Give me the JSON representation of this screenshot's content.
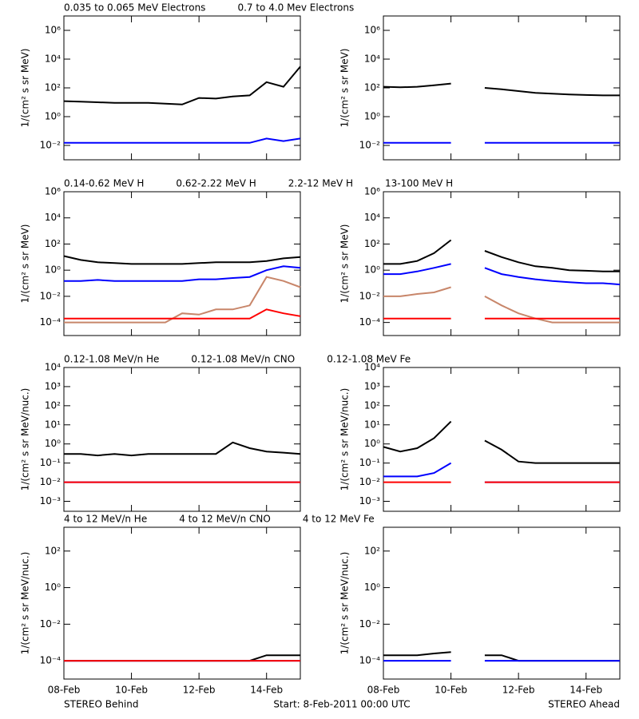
{
  "chart_data": [
    {
      "type": "line",
      "log_y": true,
      "ylabel": "1/(cm² s sr MeV)",
      "xlim": [
        0,
        7
      ],
      "xticks": [
        0,
        2,
        4,
        6
      ],
      "ylim": [
        0.001,
        10000000
      ],
      "yticks": [
        {
          "value": 0.01,
          "label": "10⁻²"
        },
        {
          "value": 1,
          "label": "10⁰"
        },
        {
          "value": 100,
          "label": "10²"
        },
        {
          "value": 10000,
          "label": "10⁴"
        },
        {
          "value": 1000000,
          "label": "10⁶"
        }
      ],
      "x": [
        0,
        0.5,
        1,
        1.5,
        2,
        2.5,
        3,
        3.5,
        4,
        4.5,
        5,
        5.5,
        6,
        6.5,
        7
      ],
      "series": [
        {
          "name": "0.035 to 0.065 MeV Electrons",
          "color": "#000000",
          "values": [
            12,
            11,
            10,
            9,
            9,
            9,
            8,
            7,
            20,
            18,
            25,
            30,
            250,
            120,
            3000
          ]
        },
        {
          "name": "0.7 to 4.0 Mev Electrons",
          "color": "#0000ff",
          "values": [
            0.015,
            0.015,
            0.015,
            0.015,
            0.015,
            0.015,
            0.015,
            0.015,
            0.015,
            0.015,
            0.015,
            0.015,
            0.03,
            0.02,
            0.03
          ]
        }
      ]
    },
    {
      "type": "line",
      "log_y": true,
      "ylabel": "1/(cm² s sr MeV)",
      "xlim": [
        0,
        7
      ],
      "xticks": [
        0,
        2,
        4,
        6
      ],
      "ylim": [
        0.001,
        10000000
      ],
      "yticks": [
        {
          "value": 0.01,
          "label": "10⁻²"
        },
        {
          "value": 1,
          "label": "10⁰"
        },
        {
          "value": 100,
          "label": "10²"
        },
        {
          "value": 10000,
          "label": "10⁴"
        },
        {
          "value": 1000000,
          "label": "10⁶"
        }
      ],
      "x": [
        0,
        0.5,
        1,
        1.5,
        2,
        2.5,
        3,
        3.5,
        4,
        4.5,
        5,
        5.5,
        6,
        6.5,
        7
      ],
      "series": [
        {
          "color": "#000000",
          "values": [
            120,
            110,
            120,
            150,
            200,
            null,
            100,
            80,
            60,
            45,
            40,
            35,
            32,
            30,
            30
          ]
        },
        {
          "color": "#0000ff",
          "values": [
            0.015,
            0.015,
            0.015,
            0.015,
            0.015,
            null,
            0.015,
            0.015,
            0.015,
            0.015,
            0.015,
            0.015,
            0.015,
            0.015,
            0.015
          ]
        }
      ]
    },
    {
      "type": "line",
      "log_y": true,
      "ylabel": "1/(cm² s sr MeV)",
      "xlim": [
        0,
        7
      ],
      "xticks": [
        0,
        2,
        4,
        6
      ],
      "ylim": [
        1e-05,
        1000000
      ],
      "yticks": [
        {
          "value": 0.0001,
          "label": "10⁻⁴"
        },
        {
          "value": 0.01,
          "label": "10⁻²"
        },
        {
          "value": 1,
          "label": "10⁰"
        },
        {
          "value": 100,
          "label": "10²"
        },
        {
          "value": 10000,
          "label": "10⁴"
        },
        {
          "value": 1000000,
          "label": "10⁶"
        }
      ],
      "x": [
        0,
        0.5,
        1,
        1.5,
        2,
        2.5,
        3,
        3.5,
        4,
        4.5,
        5,
        5.5,
        6,
        6.5,
        7
      ],
      "series": [
        {
          "name": "0.14-0.62 MeV H",
          "color": "#000000",
          "values": [
            12,
            6,
            4,
            3.5,
            3,
            3,
            3,
            3,
            3.5,
            4,
            4,
            4,
            5,
            8,
            10
          ]
        },
        {
          "name": "0.62-2.22 MeV H",
          "color": "#0000ff",
          "values": [
            0.15,
            0.15,
            0.18,
            0.15,
            0.15,
            0.15,
            0.15,
            0.15,
            0.2,
            0.2,
            0.25,
            0.3,
            1,
            2,
            1.5
          ]
        },
        {
          "name": "2.2-12 MeV H",
          "color": "#c8866a",
          "values": [
            0.0001,
            0.0001,
            0.0001,
            0.0001,
            0.0001,
            0.0001,
            0.0001,
            0.0005,
            0.0004,
            0.001,
            0.001,
            0.002,
            0.3,
            0.15,
            0.05
          ]
        },
        {
          "name": "13-100 MeV H",
          "color": "#ff0000",
          "values": [
            0.0002,
            0.0002,
            0.0002,
            0.0002,
            0.0002,
            0.0002,
            0.0002,
            0.0002,
            0.0002,
            0.0002,
            0.0002,
            0.0002,
            0.001,
            0.0005,
            0.0003
          ]
        }
      ]
    },
    {
      "type": "line",
      "log_y": true,
      "ylabel": "1/(cm² s sr MeV)",
      "xlim": [
        0,
        7
      ],
      "xticks": [
        0,
        2,
        4,
        6
      ],
      "ylim": [
        1e-05,
        1000000
      ],
      "yticks": [
        {
          "value": 0.0001,
          "label": "10⁻⁴"
        },
        {
          "value": 0.01,
          "label": "10⁻²"
        },
        {
          "value": 1,
          "label": "10⁰"
        },
        {
          "value": 100,
          "label": "10²"
        },
        {
          "value": 10000,
          "label": "10⁴"
        },
        {
          "value": 1000000,
          "label": "10⁶"
        }
      ],
      "x": [
        0,
        0.5,
        1,
        1.5,
        2,
        2.5,
        3,
        3.5,
        4,
        4.5,
        5,
        5.5,
        6,
        6.5,
        7
      ],
      "series": [
        {
          "color": "#000000",
          "values": [
            3,
            3,
            5,
            20,
            200,
            null,
            30,
            10,
            4,
            2,
            1.5,
            1,
            0.9,
            0.8,
            0.8
          ]
        },
        {
          "color": "#0000ff",
          "values": [
            0.5,
            0.5,
            0.8,
            1.5,
            3,
            null,
            1.5,
            0.5,
            0.3,
            0.2,
            0.15,
            0.12,
            0.1,
            0.1,
            0.08
          ]
        },
        {
          "color": "#c8866a",
          "values": [
            0.01,
            0.01,
            0.015,
            0.02,
            0.05,
            null,
            0.01,
            0.002,
            0.0005,
            0.0002,
            0.0001,
            0.0001,
            0.0001,
            0.0001,
            0.0001
          ]
        },
        {
          "color": "#ff0000",
          "values": [
            0.0002,
            0.0002,
            0.0002,
            0.0002,
            0.0002,
            null,
            0.0002,
            0.0002,
            0.0002,
            0.0002,
            0.0002,
            0.0002,
            0.0002,
            0.0002,
            0.0002
          ]
        }
      ]
    },
    {
      "type": "line",
      "log_y": true,
      "ylabel": "1/(cm² s sr MeV/nuc.)",
      "xlim": [
        0,
        7
      ],
      "xticks": [
        0,
        2,
        4,
        6
      ],
      "ylim": [
        0.0003,
        10000
      ],
      "yticks": [
        {
          "value": 0.001,
          "label": "10⁻³"
        },
        {
          "value": 0.01,
          "label": "10⁻²"
        },
        {
          "value": 0.1,
          "label": "10⁻¹"
        },
        {
          "value": 1,
          "label": "10⁰"
        },
        {
          "value": 10,
          "label": "10¹"
        },
        {
          "value": 100,
          "label": "10²"
        },
        {
          "value": 1000,
          "label": "10³"
        },
        {
          "value": 10000,
          "label": "10⁴"
        }
      ],
      "x": [
        0,
        0.5,
        1,
        1.5,
        2,
        2.5,
        3,
        3.5,
        4,
        4.5,
        5,
        5.5,
        6,
        6.5,
        7
      ],
      "series": [
        {
          "name": "0.12-1.08 MeV/n He",
          "color": "#000000",
          "values": [
            0.3,
            0.3,
            0.25,
            0.3,
            0.25,
            0.3,
            0.3,
            0.3,
            0.3,
            0.3,
            1.2,
            0.6,
            0.4,
            0.35,
            0.3
          ]
        },
        {
          "name": "0.12-1.08 MeV/n CNO",
          "color": "#0000ff",
          "values": [
            0.01,
            0.01,
            0.01,
            0.01,
            0.01,
            0.01,
            0.01,
            0.01,
            0.01,
            0.01,
            0.01,
            0.01,
            0.01,
            0.01,
            0.01
          ]
        },
        {
          "name": "0.12-1.08 MeV Fe",
          "color": "#ff0000",
          "values": [
            0.01,
            0.01,
            0.01,
            0.01,
            0.01,
            0.01,
            0.01,
            0.01,
            0.01,
            0.01,
            0.01,
            0.01,
            0.01,
            0.01,
            0.01
          ]
        }
      ]
    },
    {
      "type": "line",
      "log_y": true,
      "ylabel": "1/(cm² s sr MeV/nuc.)",
      "xlim": [
        0,
        7
      ],
      "xticks": [
        0,
        2,
        4,
        6
      ],
      "ylim": [
        0.0003,
        10000
      ],
      "yticks": [
        {
          "value": 0.001,
          "label": "10⁻³"
        },
        {
          "value": 0.01,
          "label": "10⁻²"
        },
        {
          "value": 0.1,
          "label": "10⁻¹"
        },
        {
          "value": 1,
          "label": "10⁰"
        },
        {
          "value": 10,
          "label": "10¹"
        },
        {
          "value": 100,
          "label": "10²"
        },
        {
          "value": 1000,
          "label": "10³"
        },
        {
          "value": 10000,
          "label": "10⁴"
        }
      ],
      "x": [
        0,
        0.5,
        1,
        1.5,
        2,
        2.5,
        3,
        3.5,
        4,
        4.5,
        5,
        5.5,
        6,
        6.5,
        7
      ],
      "series": [
        {
          "color": "#000000",
          "values": [
            0.7,
            0.4,
            0.6,
            2,
            15,
            null,
            1.5,
            0.5,
            0.12,
            0.1,
            0.1,
            0.1,
            0.1,
            0.1,
            0.1
          ]
        },
        {
          "color": "#0000ff",
          "values": [
            0.02,
            0.02,
            0.02,
            0.03,
            0.1,
            null,
            0.01,
            0.01,
            0.01,
            0.01,
            0.01,
            0.01,
            0.01,
            0.01,
            0.01
          ]
        },
        {
          "color": "#ff0000",
          "values": [
            0.01,
            0.01,
            0.01,
            0.01,
            0.01,
            null,
            0.01,
            0.01,
            0.01,
            0.01,
            0.01,
            0.01,
            0.01,
            0.01,
            0.01
          ]
        }
      ]
    },
    {
      "type": "line",
      "log_y": true,
      "ylabel": "1/(cm² s sr MeV/nuc.)",
      "xlim": [
        0,
        7
      ],
      "xticks": [
        {
          "value": 0,
          "label": "08-Feb"
        },
        {
          "value": 2,
          "label": "10-Feb"
        },
        {
          "value": 4,
          "label": "12-Feb"
        },
        {
          "value": 6,
          "label": "14-Feb"
        }
      ],
      "ylim": [
        1e-05,
        2000
      ],
      "yticks": [
        {
          "value": 0.0001,
          "label": "10⁻⁴"
        },
        {
          "value": 0.01,
          "label": "10⁻²"
        },
        {
          "value": 1,
          "label": "10⁰"
        },
        {
          "value": 100,
          "label": "10²"
        }
      ],
      "x": [
        0,
        0.5,
        1,
        1.5,
        2,
        2.5,
        3,
        3.5,
        4,
        4.5,
        5,
        5.5,
        6,
        6.5,
        7
      ],
      "series": [
        {
          "name": "4 to 12 MeV/n He",
          "color": "#000000",
          "values": [
            0.0001,
            0.0001,
            0.0001,
            0.0001,
            0.0001,
            0.0001,
            0.0001,
            0.0001,
            0.0001,
            0.0001,
            0.0001,
            0.0001,
            0.0002,
            0.0002,
            0.0002
          ]
        },
        {
          "name": "4 to 12 MeV/n CNO",
          "color": "#0000ff",
          "values": [
            0.0001,
            0.0001,
            0.0001,
            0.0001,
            0.0001,
            0.0001,
            0.0001,
            0.0001,
            0.0001,
            0.0001,
            0.0001,
            0.0001,
            0.0001,
            0.0001,
            0.0001
          ]
        },
        {
          "name": "4 to 12 MeV Fe",
          "color": "#ff0000",
          "values": [
            0.0001,
            0.0001,
            0.0001,
            0.0001,
            0.0001,
            0.0001,
            0.0001,
            0.0001,
            0.0001,
            0.0001,
            0.0001,
            0.0001,
            0.0001,
            0.0001,
            0.0001
          ]
        }
      ]
    },
    {
      "type": "line",
      "log_y": true,
      "ylabel": "1/(cm² s sr MeV/nuc.)",
      "xlim": [
        0,
        7
      ],
      "xticks": [
        {
          "value": 0,
          "label": "08-Feb"
        },
        {
          "value": 2,
          "label": "10-Feb"
        },
        {
          "value": 4,
          "label": "12-Feb"
        },
        {
          "value": 6,
          "label": "14-Feb"
        }
      ],
      "ylim": [
        1e-05,
        2000
      ],
      "yticks": [
        {
          "value": 0.0001,
          "label": "10⁻⁴"
        },
        {
          "value": 0.01,
          "label": "10⁻²"
        },
        {
          "value": 1,
          "label": "10⁰"
        },
        {
          "value": 100,
          "label": "10²"
        }
      ],
      "x": [
        0,
        0.5,
        1,
        1.5,
        2,
        2.5,
        3,
        3.5,
        4,
        4.5,
        5,
        5.5,
        6,
        6.5,
        7
      ],
      "series": [
        {
          "color": "#000000",
          "values": [
            0.0002,
            0.0002,
            0.0002,
            0.00025,
            0.0003,
            null,
            0.0002,
            0.0002,
            0.0001,
            0.0001,
            0.0001,
            0.0001,
            0.0001,
            0.0001,
            0.0001
          ]
        },
        {
          "color": "#0000ff",
          "values": [
            0.0001,
            0.0001,
            0.0001,
            0.0001,
            0.0001,
            null,
            0.0001,
            0.0001,
            0.0001,
            0.0001,
            0.0001,
            0.0001,
            0.0001,
            0.0001,
            0.0001
          ]
        }
      ]
    }
  ],
  "footer": {
    "left": "STEREO Behind",
    "center": "Start:  8-Feb-2011 00:00 UTC",
    "right": "STEREO Ahead"
  }
}
